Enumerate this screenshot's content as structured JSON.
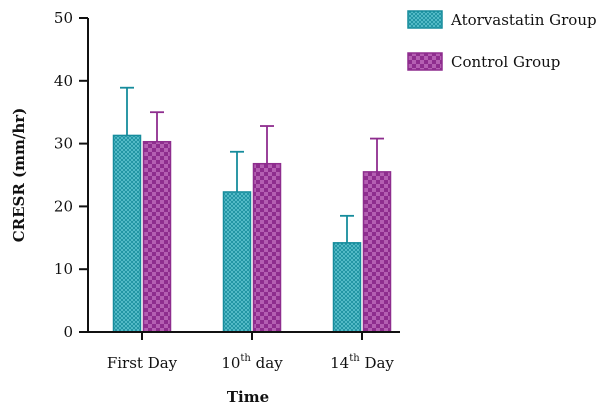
{
  "chart_data": {
    "type": "bar",
    "xlabel": "Time",
    "ylabel": "CRESR (mm/hr)",
    "ylim": [
      0,
      50
    ],
    "yticks": [
      0,
      10,
      20,
      30,
      40,
      50
    ],
    "categories": [
      {
        "base": "First Day",
        "sup": "",
        "rest": ""
      },
      {
        "base": "10",
        "sup": "th",
        "rest": " day"
      },
      {
        "base": "14",
        "sup": "th",
        "rest": " Day"
      }
    ],
    "series": [
      {
        "name": "Atorvastatin Group",
        "values": [
          31.3,
          22.3,
          14.2
        ],
        "errors": [
          7.6,
          6.4,
          4.3
        ],
        "color": "#168c9c",
        "pattern": "crosshatch"
      },
      {
        "name": "Control Group",
        "values": [
          30.3,
          26.8,
          25.5
        ],
        "errors": [
          4.7,
          6.0,
          5.3
        ],
        "color": "#8e2d8e",
        "pattern": "checker"
      }
    ],
    "legend_position": "top-right",
    "grid": false
  }
}
